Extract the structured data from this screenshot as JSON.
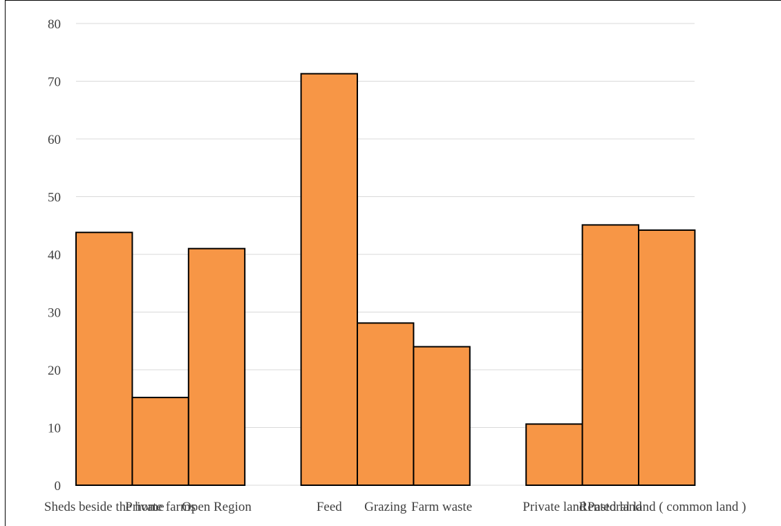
{
  "chart_data": {
    "type": "bar",
    "categories": [
      "Sheds beside the home",
      "Private farms",
      "Open Region",
      "",
      "Feed",
      "Grazing",
      "Farm waste",
      "",
      "Private land",
      "Rented land",
      "Pastoral land ( common land )"
    ],
    "values": [
      43.8,
      15.2,
      41,
      null,
      71.3,
      28.1,
      24,
      null,
      10.6,
      45.1,
      44.2
    ],
    "ylim": [
      0,
      80
    ],
    "yticks": [
      0,
      10,
      20,
      30,
      40,
      50,
      60,
      70,
      80
    ],
    "title": "",
    "xlabel": "",
    "ylabel": "",
    "grid": true,
    "colors": {
      "bar_fill": "#F79646",
      "bar_stroke": "#000000",
      "grid": "#d9d9d9",
      "text": "#404040"
    }
  }
}
